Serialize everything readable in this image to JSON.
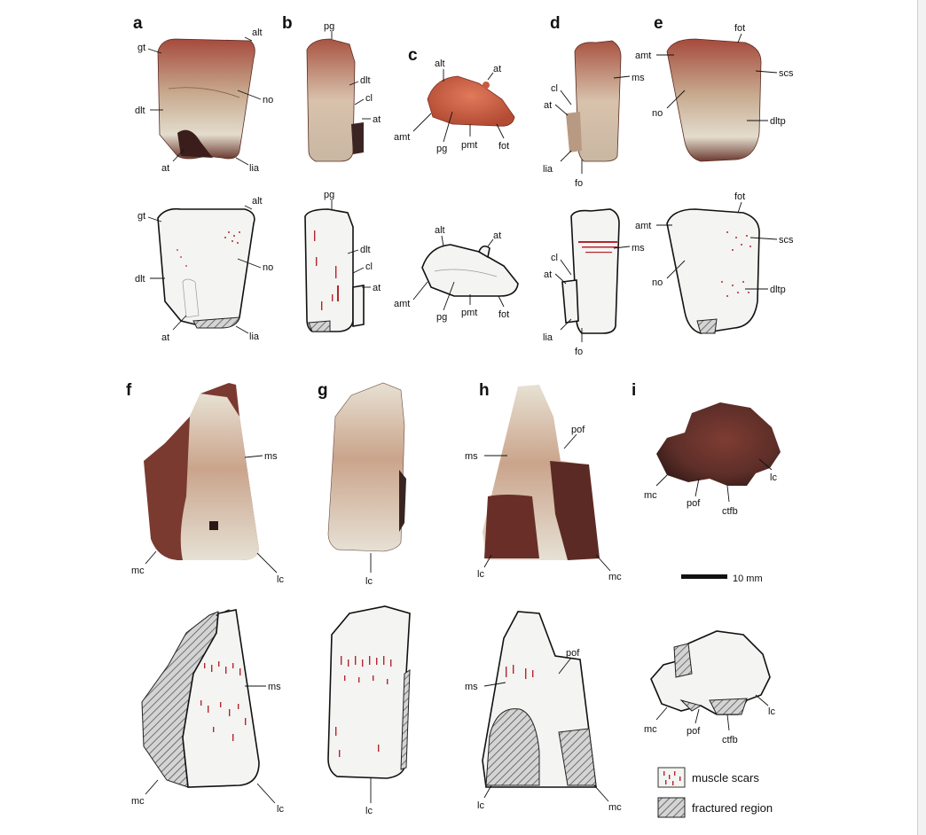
{
  "figure": {
    "panels": {
      "a": {
        "letter": "a",
        "labels": [
          "alt",
          "gt",
          "no",
          "dlt",
          "at",
          "lia"
        ]
      },
      "b": {
        "letter": "b",
        "labels": [
          "pg",
          "dlt",
          "cl",
          "at"
        ]
      },
      "c": {
        "letter": "c",
        "labels": [
          "alt",
          "at",
          "amt",
          "pg",
          "pmt",
          "fot"
        ]
      },
      "d": {
        "letter": "d",
        "labels": [
          "ms",
          "cl",
          "at",
          "lia",
          "fo"
        ]
      },
      "e": {
        "letter": "e",
        "labels": [
          "fot",
          "amt",
          "scs",
          "no",
          "dltp"
        ]
      },
      "f": {
        "letter": "f",
        "labels": [
          "ms",
          "mc",
          "lc"
        ]
      },
      "g": {
        "letter": "g",
        "labels": [
          "lc"
        ]
      },
      "h": {
        "letter": "h",
        "labels": [
          "pof",
          "ms",
          "lc",
          "mc"
        ]
      },
      "i": {
        "letter": "i",
        "labels": [
          "lc",
          "mc",
          "pof",
          "ctfb"
        ]
      }
    },
    "scale_bar": {
      "label": "10 mm"
    },
    "legend": {
      "muscle_scars": "muscle scars",
      "fractured_region": "fractured region"
    },
    "colors": {
      "bone_photo": "#a9594a",
      "bone_light": "#e9e3d6",
      "drawing_fill": "#f4f4f2",
      "muscle_scar": "#b3262e",
      "hatch": "#555555"
    }
  }
}
